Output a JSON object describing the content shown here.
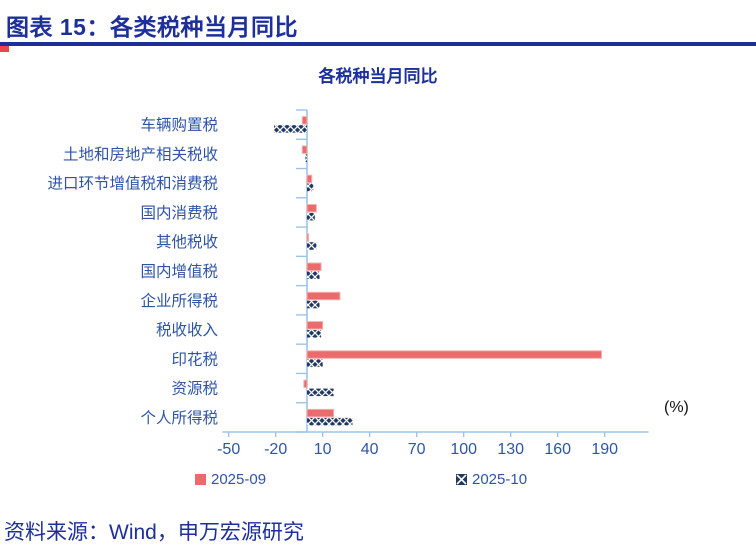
{
  "page": {
    "header_title": "图表 15：各类税种当月同比",
    "source_note": "资料来源：Wind，申万宏源研究"
  },
  "colors": {
    "navy_text": "#1d2f9b",
    "label_blue": "#2e54a8",
    "axis_light_blue": "#9dc3e6",
    "bar_red": "#ea6b6b",
    "bar_red_edge": "#f6b0b0",
    "bar_navy": "#1f3864",
    "accent_red": "#e8474c"
  },
  "chart_data": {
    "type": "bar",
    "orientation": "horizontal",
    "title": "各税种当月同比",
    "unit_label": "(%)",
    "categories": [
      "车辆购置税",
      "土地和房地产相关税收",
      "进口环节增值税和消费税",
      "国内消费税",
      "其他税收",
      "国内增值税",
      "企业所得税",
      "税收收入",
      "印花税",
      "资源税",
      "个人所得税"
    ],
    "series": [
      {
        "name": "2025-09",
        "style": "solid-red-bar",
        "values": [
          -3,
          -3,
          3,
          6,
          1,
          9,
          21,
          10,
          188,
          -2,
          17
        ]
      },
      {
        "name": "2025-10",
        "style": "navy-x-pattern-bar",
        "values": [
          -21,
          -1,
          4,
          5,
          6,
          8,
          8,
          9,
          10,
          17,
          29
        ]
      }
    ],
    "x_ticks": [
      -50,
      -20,
      10,
      40,
      70,
      100,
      130,
      160,
      190
    ],
    "xlim": [
      -54,
      218
    ],
    "grid": false,
    "legend_position": "bottom"
  }
}
